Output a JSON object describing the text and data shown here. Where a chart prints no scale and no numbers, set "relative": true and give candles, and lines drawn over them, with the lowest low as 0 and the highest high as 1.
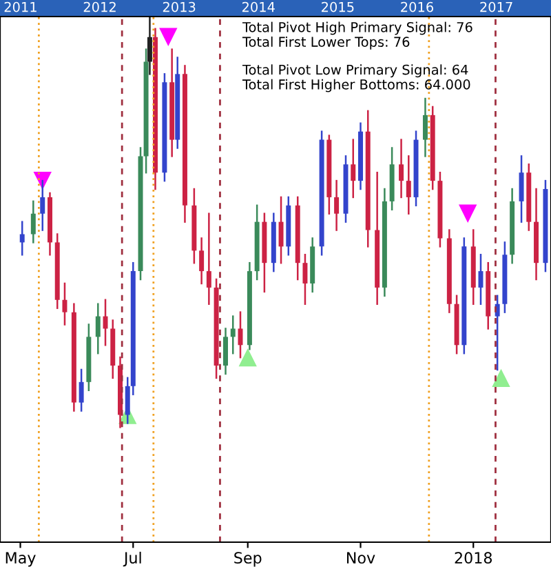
{
  "chart_data": {
    "type": "candlestick",
    "relative": true,
    "x": [
      "2017-05-02",
      "2017-05-08",
      "2017-05-13",
      "2017-05-17",
      "2017-05-21",
      "2017-05-25",
      "2017-05-30",
      "2017-06-03",
      "2017-06-07",
      "2017-06-12",
      "2017-06-16",
      "2017-06-20",
      "2017-06-24",
      "2017-06-28",
      "2017-07-01",
      "2017-07-05",
      "2017-07-08",
      "2017-07-10",
      "2017-07-13",
      "2017-07-18",
      "2017-07-22",
      "2017-07-25",
      "2017-07-29",
      "2017-08-03",
      "2017-08-07",
      "2017-08-11",
      "2017-08-15",
      "2017-08-20",
      "2017-08-24",
      "2017-08-28",
      "2017-09-02",
      "2017-09-06",
      "2017-09-10",
      "2017-09-15",
      "2017-09-19",
      "2017-09-23",
      "2017-09-28",
      "2017-10-02",
      "2017-10-06",
      "2017-10-11",
      "2017-10-15",
      "2017-10-19",
      "2017-10-24",
      "2017-10-28",
      "2017-11-01",
      "2017-11-05",
      "2017-11-10",
      "2017-11-14",
      "2017-11-18",
      "2017-11-23",
      "2017-11-27",
      "2017-12-01",
      "2017-12-06",
      "2017-12-10",
      "2017-12-14",
      "2017-12-19",
      "2017-12-23",
      "2017-12-27",
      "2018-01-01",
      "2018-01-05",
      "2018-01-09",
      "2018-01-14",
      "2018-01-18",
      "2018-01-22",
      "2018-01-27",
      "2018-01-31",
      "2018-02-04",
      "2018-02-09"
    ],
    "ohlc": [
      [
        0.45,
        0.5,
        0.42,
        0.47
      ],
      [
        0.47,
        0.55,
        0.45,
        0.52
      ],
      [
        0.52,
        0.6,
        0.48,
        0.56
      ],
      [
        0.56,
        0.57,
        0.42,
        0.45
      ],
      [
        0.45,
        0.47,
        0.29,
        0.31
      ],
      [
        0.31,
        0.35,
        0.25,
        0.28
      ],
      [
        0.28,
        0.3,
        0.04,
        0.06
      ],
      [
        0.06,
        0.14,
        0.04,
        0.11
      ],
      [
        0.11,
        0.25,
        0.09,
        0.22
      ],
      [
        0.22,
        0.3,
        0.18,
        0.27
      ],
      [
        0.27,
        0.31,
        0.2,
        0.24
      ],
      [
        0.24,
        0.26,
        0.12,
        0.15
      ],
      [
        0.15,
        0.17,
        0.0,
        0.03
      ],
      [
        0.03,
        0.12,
        0.01,
        0.1
      ],
      [
        0.1,
        0.4,
        0.08,
        0.38
      ],
      [
        0.38,
        0.68,
        0.36,
        0.66
      ],
      [
        0.66,
        0.92,
        0.62,
        0.89
      ],
      [
        0.89,
        1.0,
        0.86,
        0.95
      ],
      [
        0.95,
        0.97,
        0.58,
        0.62
      ],
      [
        0.62,
        0.86,
        0.6,
        0.84
      ],
      [
        0.84,
        0.92,
        0.66,
        0.7
      ],
      [
        0.7,
        0.9,
        0.68,
        0.86
      ],
      [
        0.86,
        0.88,
        0.5,
        0.54
      ],
      [
        0.54,
        0.58,
        0.4,
        0.43
      ],
      [
        0.43,
        0.46,
        0.35,
        0.38
      ],
      [
        0.38,
        0.52,
        0.3,
        0.34
      ],
      [
        0.34,
        0.36,
        0.12,
        0.15
      ],
      [
        0.15,
        0.24,
        0.13,
        0.22
      ],
      [
        0.22,
        0.27,
        0.18,
        0.24
      ],
      [
        0.24,
        0.28,
        0.17,
        0.2
      ],
      [
        0.2,
        0.4,
        0.19,
        0.38
      ],
      [
        0.38,
        0.54,
        0.36,
        0.5
      ],
      [
        0.5,
        0.52,
        0.33,
        0.4
      ],
      [
        0.4,
        0.52,
        0.38,
        0.5
      ],
      [
        0.5,
        0.56,
        0.4,
        0.44
      ],
      [
        0.44,
        0.56,
        0.42,
        0.54
      ],
      [
        0.54,
        0.56,
        0.36,
        0.4
      ],
      [
        0.4,
        0.42,
        0.3,
        0.35
      ],
      [
        0.35,
        0.46,
        0.33,
        0.44
      ],
      [
        0.44,
        0.72,
        0.42,
        0.7
      ],
      [
        0.7,
        0.71,
        0.52,
        0.56
      ],
      [
        0.56,
        0.6,
        0.48,
        0.52
      ],
      [
        0.52,
        0.66,
        0.5,
        0.64
      ],
      [
        0.64,
        0.7,
        0.56,
        0.6
      ],
      [
        0.6,
        0.74,
        0.58,
        0.72
      ],
      [
        0.72,
        0.77,
        0.44,
        0.48
      ],
      [
        0.48,
        0.62,
        0.3,
        0.34
      ],
      [
        0.34,
        0.58,
        0.32,
        0.55
      ],
      [
        0.55,
        0.68,
        0.53,
        0.64
      ],
      [
        0.64,
        0.7,
        0.56,
        0.6
      ],
      [
        0.6,
        0.66,
        0.52,
        0.56
      ],
      [
        0.56,
        0.72,
        0.54,
        0.7
      ],
      [
        0.7,
        0.8,
        0.66,
        0.76
      ],
      [
        0.76,
        0.78,
        0.58,
        0.6
      ],
      [
        0.6,
        0.62,
        0.44,
        0.46
      ],
      [
        0.46,
        0.48,
        0.28,
        0.3
      ],
      [
        0.3,
        0.32,
        0.18,
        0.2
      ],
      [
        0.2,
        0.46,
        0.18,
        0.44
      ],
      [
        0.44,
        0.48,
        0.3,
        0.34
      ],
      [
        0.34,
        0.42,
        0.3,
        0.38
      ],
      [
        0.38,
        0.4,
        0.24,
        0.27
      ],
      [
        0.27,
        0.32,
        0.14,
        0.3
      ],
      [
        0.3,
        0.45,
        0.28,
        0.42
      ],
      [
        0.42,
        0.58,
        0.4,
        0.55
      ],
      [
        0.55,
        0.66,
        0.5,
        0.62
      ],
      [
        0.62,
        0.64,
        0.48,
        0.5
      ],
      [
        0.5,
        0.58,
        0.36,
        0.4
      ],
      [
        0.4,
        0.6,
        0.38,
        0.58
      ]
    ],
    "colors": [
      "#3344cc",
      "#3a8a5a",
      "#3344cc",
      "#cc2244",
      "#cc2244",
      "#cc2244",
      "#cc2244",
      "#3344cc",
      "#3a8a5a",
      "#3a8a5a",
      "#cc2244",
      "#cc2244",
      "#cc2244",
      "#3344cc",
      "#3344cc",
      "#3a8a5a",
      "#3a8a5a",
      "#222222",
      "#cc2244",
      "#3344cc",
      "#cc2244",
      "#3344cc",
      "#cc2244",
      "#cc2244",
      "#cc2244",
      "#cc2244",
      "#cc2244",
      "#3a8a5a",
      "#3a8a5a",
      "#cc2244",
      "#3a8a5a",
      "#3a8a5a",
      "#cc2244",
      "#3344cc",
      "#cc2244",
      "#3344cc",
      "#cc2244",
      "#cc2244",
      "#3a8a5a",
      "#3344cc",
      "#cc2244",
      "#cc2244",
      "#3344cc",
      "#cc2244",
      "#3344cc",
      "#cc2244",
      "#cc2244",
      "#3a8a5a",
      "#3a8a5a",
      "#cc2244",
      "#cc2244",
      "#3344cc",
      "#3a8a5a",
      "#cc2244",
      "#cc2244",
      "#cc2244",
      "#cc2244",
      "#3344cc",
      "#cc2244",
      "#3344cc",
      "#cc2244",
      "#3344cc",
      "#3344cc",
      "#3a8a5a",
      "#3344cc",
      "#cc2244",
      "#cc2244",
      "#3344cc"
    ],
    "series": [
      {
        "type": "scatter",
        "marker": "triangle",
        "color": "#ff00ff",
        "x": [
          "2017-05-13",
          "2017-07-20",
          "2017-12-29"
        ],
        "values": [
          0.6,
          0.95,
          0.52
        ]
      },
      {
        "type": "scatter",
        "marker": "triangle",
        "color": "#90ee90",
        "x": [
          "2017-06-28",
          "2017-09-01",
          "2018-01-16"
        ],
        "values": [
          0.03,
          0.17,
          0.12
        ]
      }
    ],
    "xlim": [
      "2017-04-20",
      "2018-02-12"
    ],
    "xticks": [
      {
        "value": "2017-05-01",
        "label": "May"
      },
      {
        "value": "2017-07-01",
        "label": "Jul"
      },
      {
        "value": "2017-09-01",
        "label": "Sep"
      },
      {
        "value": "2017-11-01",
        "label": "Nov"
      },
      {
        "value": "2018-01-01",
        "label": "2018"
      }
    ],
    "x2lim": [
      2010.79,
      2017.74
    ],
    "x2ticks": [
      {
        "value": 2011.05,
        "label": "2011"
      },
      {
        "value": 2012.05,
        "label": "2012"
      },
      {
        "value": 2013.05,
        "label": "2013"
      },
      {
        "value": 2014.05,
        "label": "2014"
      },
      {
        "value": 2015.05,
        "label": "2015"
      },
      {
        "value": 2016.05,
        "label": "2016"
      },
      {
        "value": 2017.05,
        "label": "2017"
      }
    ],
    "ref_lines": [
      {
        "axis": "x",
        "value": "2017-05-11",
        "color": "#f0a020",
        "line_style": "dotted"
      },
      {
        "axis": "x",
        "value": "2017-06-25",
        "color": "#a03040",
        "line_style": "dashed"
      },
      {
        "axis": "x",
        "value": "2017-07-12",
        "color": "#f0a020",
        "line_style": "dotted"
      },
      {
        "axis": "x",
        "value": "2017-08-17",
        "color": "#a03040",
        "line_style": "dashed"
      },
      {
        "axis": "x",
        "value": "2017-12-08",
        "color": "#f0a020",
        "line_style": "dotted"
      },
      {
        "axis": "x",
        "value": "2018-01-13",
        "color": "#a03040",
        "line_style": "dashed"
      }
    ],
    "annotations": [
      "Total Pivot High Primary Signal: 76",
      "Total First Lower Tops: 76",
      "Total Pivot Low Primary Signal: 64",
      "Total First Higher Bottoms: 64.000"
    ],
    "grid": false,
    "legend": false,
    "tick_labels": "x"
  }
}
